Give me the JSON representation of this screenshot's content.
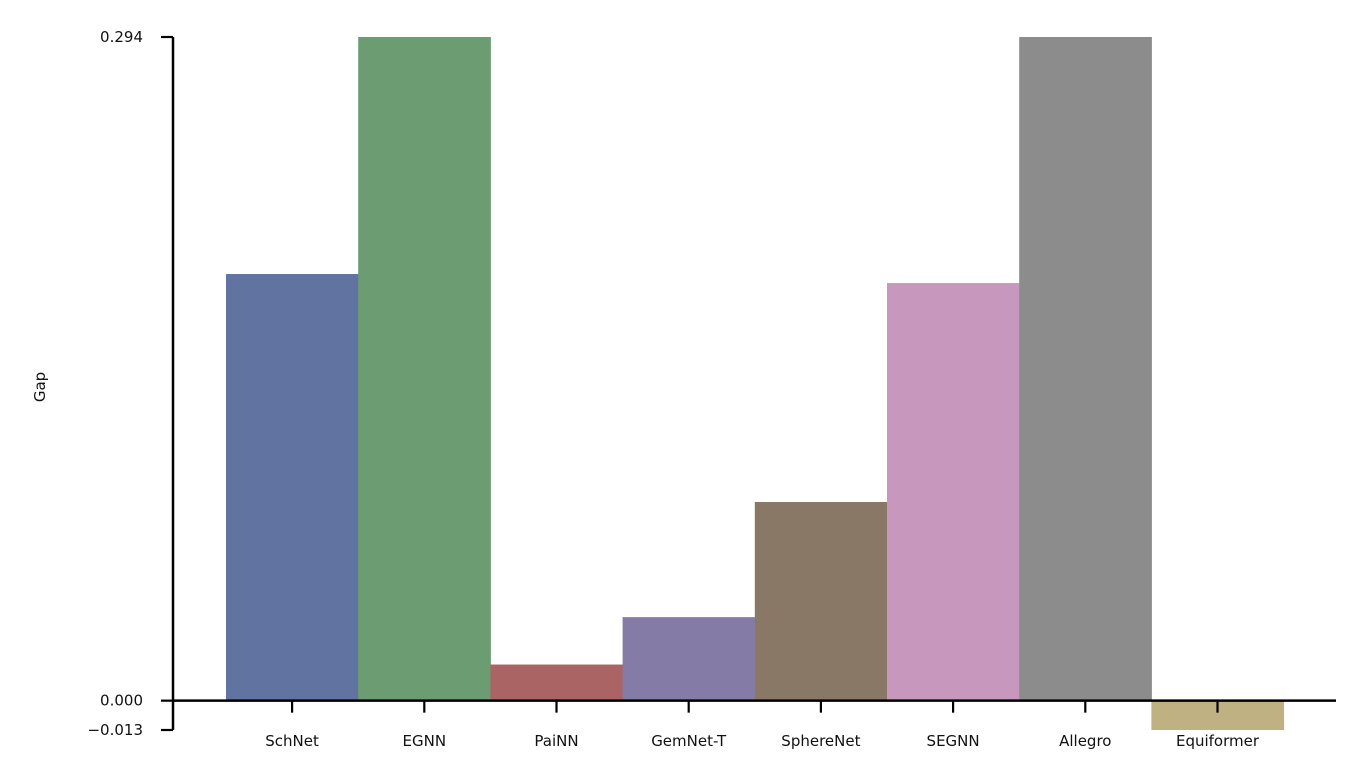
{
  "chart_data": {
    "type": "bar",
    "ylabel": "Gap",
    "xlabel": "",
    "categories": [
      "SchNet",
      "EGNN",
      "PaiNN",
      "GemNet-T",
      "SphereNet",
      "SEGNN",
      "Allegro",
      "Equiformer"
    ],
    "values": [
      0.189,
      0.294,
      0.016,
      0.037,
      0.088,
      0.185,
      0.294,
      -0.013
    ],
    "colors": [
      "#6174a1",
      "#6b9c72",
      "#aa6463",
      "#847ca7",
      "#8a7867",
      "#c797bd",
      "#8c8c8c",
      "#c0b182"
    ],
    "ylim": [
      -0.013,
      0.294
    ],
    "yticks": [
      0.294,
      0.0,
      -0.013
    ],
    "ytick_labels": [
      "0.294",
      "0.000",
      "−0.013"
    ],
    "grid": false,
    "legend": "none"
  }
}
